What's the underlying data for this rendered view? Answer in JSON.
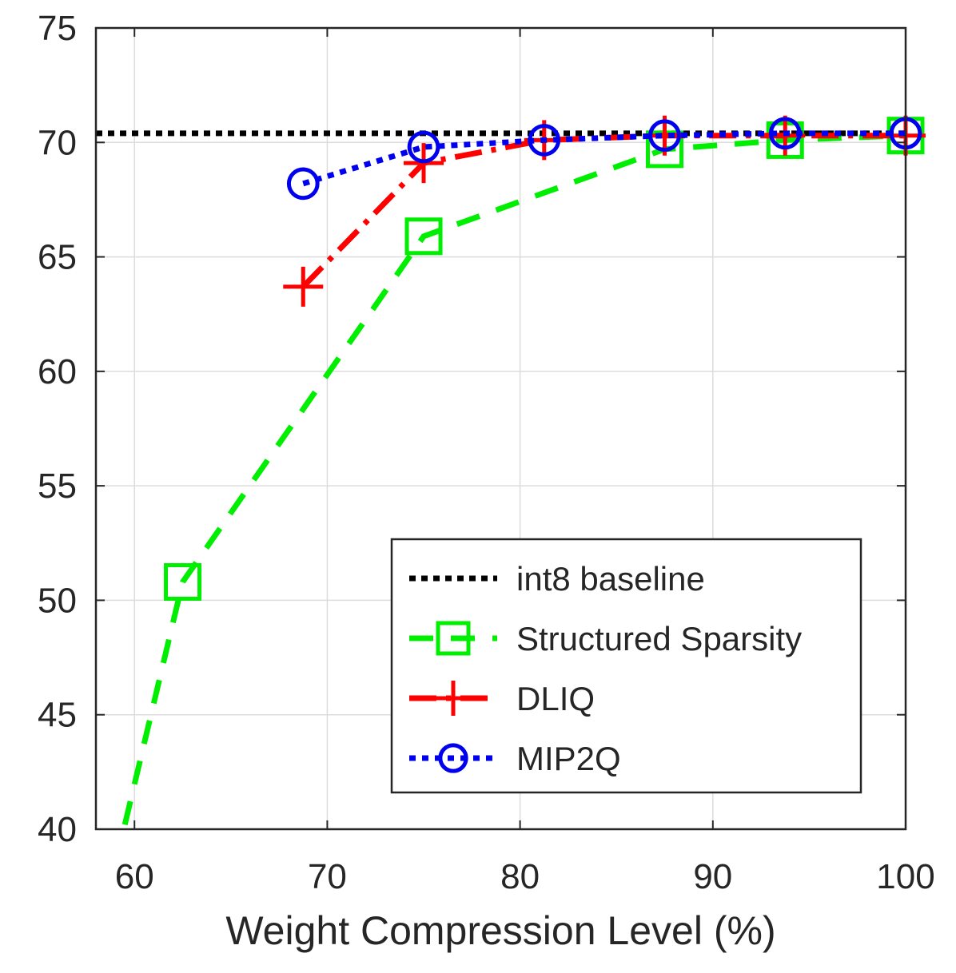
{
  "chart_data": {
    "type": "line",
    "title": "",
    "xlabel": "Weight Compression Level (%)",
    "ylabel": "",
    "xlim": [
      58,
      100
    ],
    "ylim": [
      40,
      75
    ],
    "xticks": [
      60,
      70,
      80,
      90,
      100
    ],
    "yticks": [
      40,
      45,
      50,
      55,
      60,
      65,
      70,
      75
    ],
    "grid": true,
    "legend_position": "bottom-right",
    "baseline": {
      "name": "int8 baseline",
      "value": 70.4,
      "color": "#000000"
    },
    "series": [
      {
        "name": "Structured Sparsity",
        "color": "#00ee00",
        "marker": "square",
        "style": "dashed",
        "x": [
          59.5,
          62.5,
          75.0,
          87.5,
          93.75,
          100.0
        ],
        "y": [
          40.2,
          50.8,
          65.9,
          69.7,
          70.1,
          70.3
        ]
      },
      {
        "name": "DLIQ",
        "color": "#ff0000",
        "marker": "plus",
        "style": "dashdot",
        "x": [
          68.75,
          75.0,
          81.25,
          87.5,
          93.75,
          100.0
        ],
        "y": [
          63.7,
          69.1,
          70.1,
          70.3,
          70.3,
          70.3
        ]
      },
      {
        "name": "MIP2Q",
        "color": "#0000ee",
        "marker": "circle",
        "style": "dotted",
        "x": [
          68.75,
          75.0,
          81.25,
          87.5,
          93.75,
          100.0
        ],
        "y": [
          68.2,
          69.8,
          70.1,
          70.3,
          70.4,
          70.4
        ]
      }
    ]
  }
}
